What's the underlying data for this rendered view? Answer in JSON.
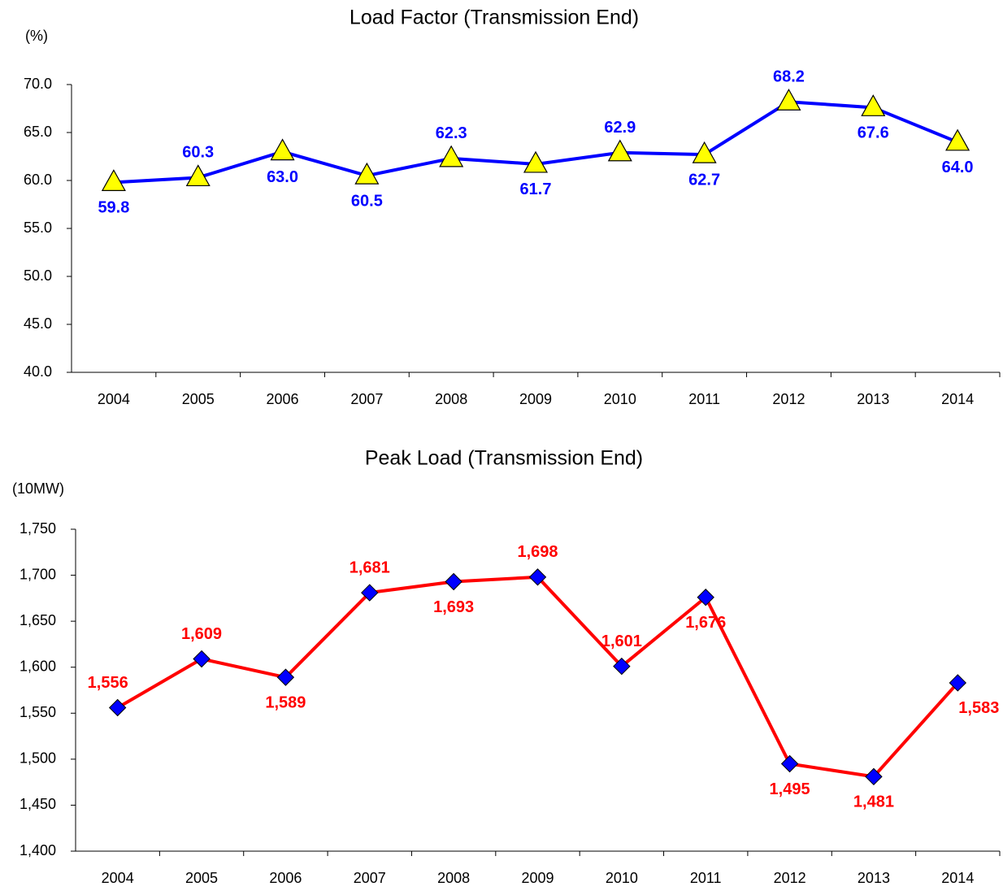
{
  "chart_data": [
    {
      "type": "line",
      "title": "Load Factor (Transmission End)",
      "y_label": "(%)",
      "categories": [
        "2004",
        "2005",
        "2006",
        "2007",
        "2008",
        "2009",
        "2010",
        "2011",
        "2012",
        "2013",
        "2014"
      ],
      "values": [
        59.8,
        60.3,
        63.0,
        60.5,
        62.3,
        61.7,
        62.9,
        62.7,
        68.2,
        67.6,
        64.0
      ],
      "value_labels": [
        "59.8",
        "60.3",
        "63.0",
        "60.5",
        "62.3",
        "61.7",
        "62.9",
        "62.7",
        "68.2",
        "67.6",
        "64.0"
      ],
      "color": "#0000ff",
      "marker": "triangle",
      "marker_color": "#ffff00",
      "label_color": "#0000ff",
      "ylim": [
        40,
        70
      ],
      "yticks": [
        {
          "value": 40,
          "label": "40.0"
        },
        {
          "value": 45,
          "label": "45.0"
        },
        {
          "value": 50,
          "label": "50.0"
        },
        {
          "value": 55,
          "label": "55.0"
        },
        {
          "value": 60,
          "label": "60.0"
        },
        {
          "value": 65,
          "label": "65.0"
        },
        {
          "value": 70,
          "label": "70.0"
        }
      ]
    },
    {
      "type": "line",
      "title": "Peak Load (Transmission End)",
      "y_label": "(10MW)",
      "categories": [
        "2004",
        "2005",
        "2006",
        "2007",
        "2008",
        "2009",
        "2010",
        "2011",
        "2012",
        "2013",
        "2014"
      ],
      "values": [
        1556,
        1609,
        1589,
        1681,
        1693,
        1698,
        1601,
        1676,
        1495,
        1481,
        1583
      ],
      "value_labels": [
        "1,556",
        "1,609",
        "1,589",
        "1,681",
        "1,693",
        "1,698",
        "1,601",
        "1,676",
        "1,495",
        "1,481",
        "1,583"
      ],
      "color": "#ff0000",
      "marker": "diamond",
      "marker_color": "#0000ff",
      "label_color": "#ff0000",
      "ylim": [
        1400,
        1750
      ],
      "yticks": [
        {
          "value": 1400,
          "label": "1,400"
        },
        {
          "value": 1450,
          "label": "1,450"
        },
        {
          "value": 1500,
          "label": "1,500"
        },
        {
          "value": 1550,
          "label": "1,550"
        },
        {
          "value": 1600,
          "label": "1,600"
        },
        {
          "value": 1650,
          "label": "1,650"
        },
        {
          "value": 1700,
          "label": "1,700"
        },
        {
          "value": 1750,
          "label": "1,750"
        }
      ]
    }
  ]
}
